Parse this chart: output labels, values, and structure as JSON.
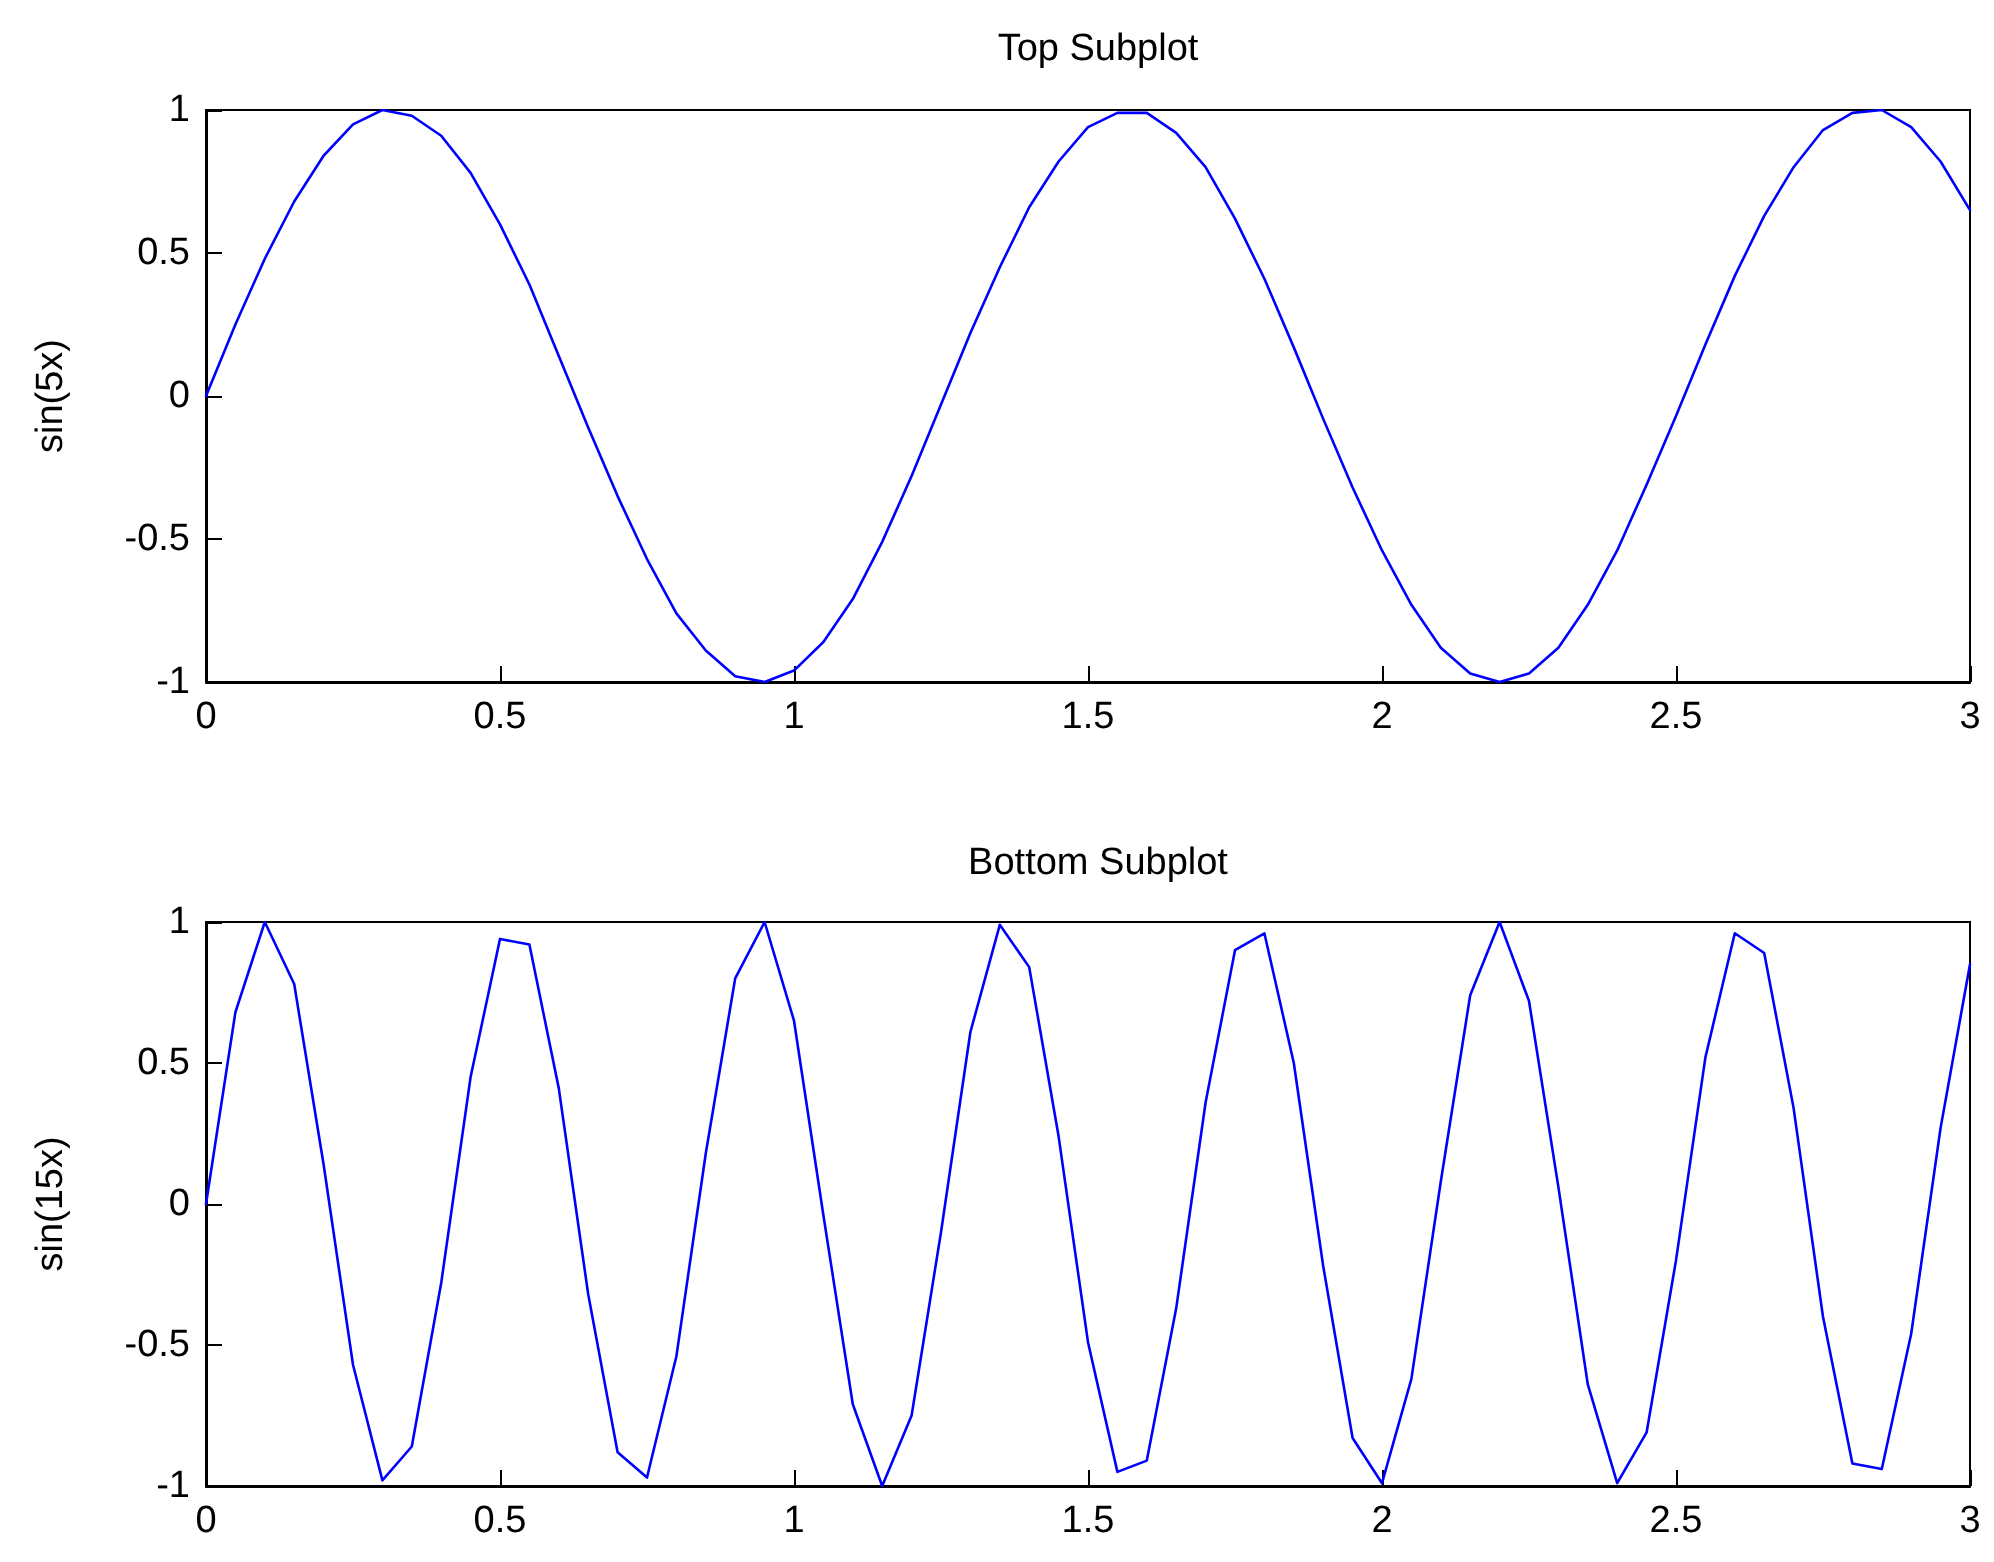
{
  "chart_data": [
    {
      "type": "line",
      "title": "Top Subplot",
      "ylabel": "sin(5x)",
      "color": "#0000ff",
      "marker": "none",
      "grid": false,
      "x": [
        0,
        0.05,
        0.1,
        0.15,
        0.2,
        0.25,
        0.3,
        0.35,
        0.4,
        0.45,
        0.5,
        0.55,
        0.6,
        0.65,
        0.7,
        0.75,
        0.8,
        0.85,
        0.9,
        0.95,
        1,
        1.05,
        1.1,
        1.15,
        1.2,
        1.25,
        1.3,
        1.35,
        1.4,
        1.45,
        1.5,
        1.55,
        1.6,
        1.65,
        1.7,
        1.75,
        1.8,
        1.85,
        1.9,
        1.95,
        2,
        2.05,
        2.1,
        2.15,
        2.2,
        2.25,
        2.3,
        2.35,
        2.4,
        2.45,
        2.5,
        2.55,
        2.6,
        2.65,
        2.7,
        2.75,
        2.8,
        2.85,
        2.9,
        2.95,
        3
      ],
      "values": [
        0,
        0.25,
        0.48,
        0.68,
        0.84,
        0.95,
        1,
        0.98,
        0.91,
        0.78,
        0.6,
        0.39,
        0.14,
        -0.11,
        -0.35,
        -0.57,
        -0.76,
        -0.89,
        -0.98,
        -1,
        -0.96,
        -0.86,
        -0.71,
        -0.51,
        -0.28,
        -0.03,
        0.22,
        0.45,
        0.66,
        0.82,
        0.94,
        0.99,
        0.99,
        0.92,
        0.8,
        0.62,
        0.41,
        0.17,
        -0.08,
        -0.32,
        -0.54,
        -0.73,
        -0.88,
        -0.97,
        -1,
        -0.97,
        -0.88,
        -0.73,
        -0.54,
        -0.31,
        -0.07,
        0.18,
        0.42,
        0.63,
        0.8,
        0.93,
        0.99,
        1,
        0.94,
        0.82,
        0.65
      ],
      "xlim": [
        0,
        3
      ],
      "ylim": [
        -1,
        1
      ],
      "xticks": [
        0,
        0.5,
        1,
        1.5,
        2,
        2.5,
        3
      ],
      "yticks": [
        -1,
        -0.5,
        0,
        0.5,
        1
      ]
    },
    {
      "type": "line",
      "title": "Bottom Subplot",
      "ylabel": "sin(15x)",
      "color": "#0000ff",
      "marker": "none",
      "grid": false,
      "x": [
        0,
        0.05,
        0.1,
        0.15,
        0.2,
        0.25,
        0.3,
        0.35,
        0.4,
        0.45,
        0.5,
        0.55,
        0.6,
        0.65,
        0.7,
        0.75,
        0.8,
        0.85,
        0.9,
        0.95,
        1,
        1.05,
        1.1,
        1.15,
        1.2,
        1.25,
        1.3,
        1.35,
        1.4,
        1.45,
        1.5,
        1.55,
        1.6,
        1.65,
        1.7,
        1.75,
        1.8,
        1.85,
        1.9,
        1.95,
        2,
        2.05,
        2.1,
        2.15,
        2.2,
        2.25,
        2.3,
        2.35,
        2.4,
        2.45,
        2.5,
        2.55,
        2.6,
        2.65,
        2.7,
        2.75,
        2.8,
        2.85,
        2.9,
        2.95,
        3
      ],
      "values": [
        0,
        0.68,
        1,
        0.78,
        0.14,
        -0.57,
        -0.98,
        -0.86,
        -0.28,
        0.45,
        0.94,
        0.92,
        0.41,
        -0.32,
        -0.88,
        -0.97,
        -0.54,
        0.18,
        0.8,
        1,
        0.65,
        -0.04,
        -0.71,
        -1,
        -0.75,
        -0.1,
        0.61,
        0.99,
        0.84,
        0.24,
        -0.49,
        -0.95,
        -0.91,
        -0.37,
        0.36,
        0.9,
        0.96,
        0.5,
        -0.22,
        -0.83,
        -0.99,
        -0.62,
        0.08,
        0.74,
        1,
        0.72,
        0.06,
        -0.64,
        -0.99,
        -0.81,
        -0.2,
        0.52,
        0.96,
        0.89,
        0.34,
        -0.4,
        -0.92,
        -0.94,
        -0.46,
        0.27,
        0.85
      ],
      "xlim": [
        0,
        3
      ],
      "ylim": [
        -1,
        1
      ],
      "xticks": [
        0,
        0.5,
        1,
        1.5,
        2,
        2.5,
        3
      ],
      "yticks": [
        -1,
        -0.5,
        0,
        0.5,
        1
      ]
    }
  ]
}
